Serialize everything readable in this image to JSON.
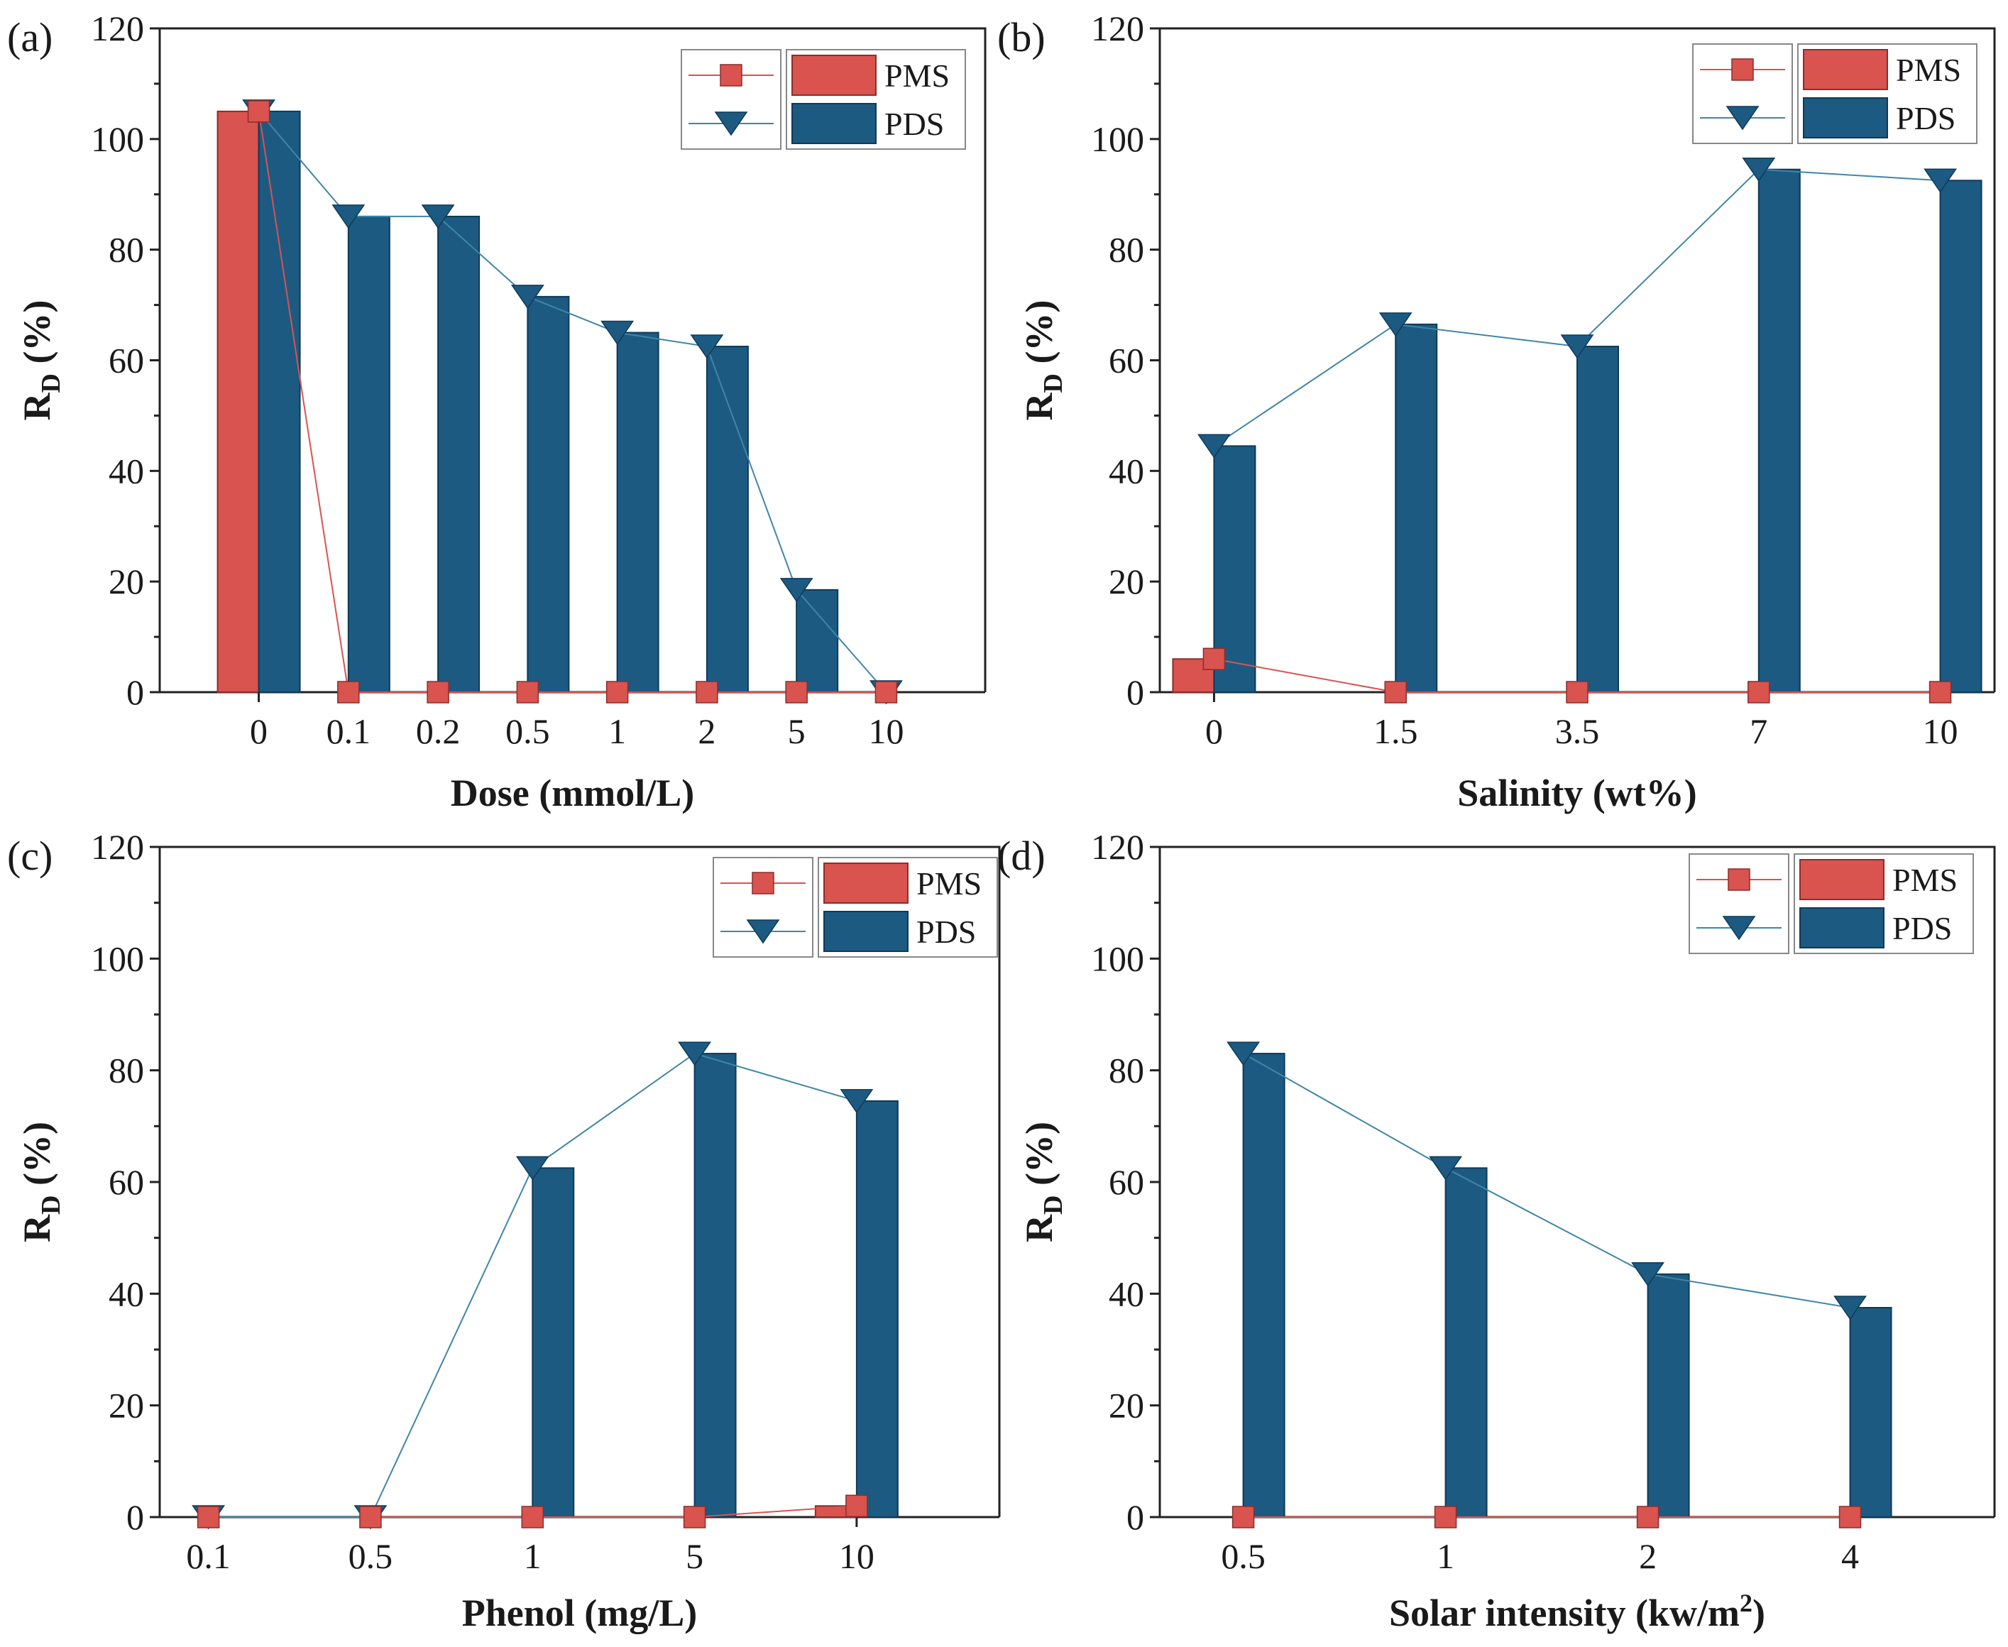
{
  "colors": {
    "pms": "#d9534f",
    "pds": "#1c5a82",
    "pms_edge": "#8b2e2c",
    "pds_edge": "#0f3a57"
  },
  "legend": {
    "pms": "PMS",
    "pds": "PDS"
  },
  "chart_data": [
    {
      "type": "bar",
      "panel": "(a)",
      "categories": [
        "0",
        "0.1",
        "0.2",
        "0.5",
        "1",
        "2",
        "5",
        "10"
      ],
      "xlabel": "Dose (mmol/L)",
      "ylabel_main": "R",
      "ylabel_sub": "D",
      "ylabel_unit": " (%)",
      "yticks": [
        "0",
        "20",
        "40",
        "60",
        "80",
        "100",
        "120"
      ],
      "ylim": [
        0,
        120
      ],
      "series": [
        {
          "name": "PMS",
          "values": [
            105,
            0,
            0,
            0,
            0,
            0,
            0,
            0
          ]
        },
        {
          "name": "PDS",
          "values": [
            105,
            86,
            86,
            71.5,
            65,
            62.5,
            18.5,
            0
          ]
        }
      ]
    },
    {
      "type": "bar",
      "panel": "(b)",
      "categories": [
        "0",
        "1.5",
        "3.5",
        "7",
        "10"
      ],
      "xlabel": "Salinity (wt%)",
      "ylabel_main": "R",
      "ylabel_sub": "D",
      "ylabel_unit": " (%)",
      "yticks": [
        "0",
        "20",
        "40",
        "60",
        "80",
        "100",
        "120"
      ],
      "ylim": [
        0,
        120
      ],
      "series": [
        {
          "name": "PMS",
          "values": [
            6,
            0,
            0,
            0,
            0
          ]
        },
        {
          "name": "PDS",
          "values": [
            44.5,
            66.5,
            62.5,
            94.5,
            92.5
          ]
        }
      ]
    },
    {
      "type": "bar",
      "panel": "(c)",
      "categories": [
        "0.1",
        "0.5",
        "1",
        "5",
        "10"
      ],
      "xlabel": "Phenol (mg/L)",
      "ylabel_main": "R",
      "ylabel_sub": "D",
      "ylabel_unit": " (%)",
      "yticks": [
        "0",
        "20",
        "40",
        "60",
        "80",
        "100",
        "120"
      ],
      "ylim": [
        0,
        120
      ],
      "series": [
        {
          "name": "PMS",
          "values": [
            0,
            0,
            0,
            0,
            2
          ]
        },
        {
          "name": "PDS",
          "values": [
            0,
            0,
            62.5,
            83,
            74.5
          ]
        }
      ]
    },
    {
      "type": "bar",
      "panel": "(d)",
      "categories": [
        "0.5",
        "1",
        "2",
        "4"
      ],
      "xlabel": "Solar intensity (kw/m",
      "xlabel_sup": "2",
      "xlabel_end": ")",
      "ylabel_main": "R",
      "ylabel_sub": "D",
      "ylabel_unit": " (%)",
      "yticks": [
        "0",
        "20",
        "40",
        "60",
        "80",
        "100",
        "120"
      ],
      "ylim": [
        0,
        120
      ],
      "series": [
        {
          "name": "PMS",
          "values": [
            0,
            0,
            0,
            0
          ]
        },
        {
          "name": "PDS",
          "values": [
            83,
            62.5,
            43.5,
            37.5
          ]
        }
      ]
    }
  ]
}
